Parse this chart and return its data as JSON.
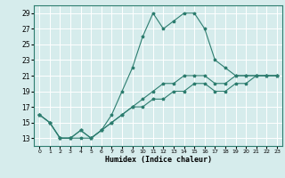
{
  "xlabel": "Humidex (Indice chaleur)",
  "ylabel": "",
  "bg_color": "#d6ecec",
  "grid_color": "#ffffff",
  "line_color": "#2d7d6f",
  "xlim": [
    -0.5,
    23.5
  ],
  "ylim": [
    12,
    30
  ],
  "yticks": [
    13,
    15,
    17,
    19,
    21,
    23,
    25,
    27,
    29
  ],
  "xticks": [
    0,
    1,
    2,
    3,
    4,
    5,
    6,
    7,
    8,
    9,
    10,
    11,
    12,
    13,
    14,
    15,
    16,
    17,
    18,
    19,
    20,
    21,
    22,
    23
  ],
  "series": [
    {
      "x": [
        0,
        1,
        2,
        3,
        4,
        5,
        6,
        7,
        8,
        9,
        10,
        11,
        12,
        13,
        14,
        15,
        16,
        17,
        18,
        19,
        20,
        21,
        22,
        23
      ],
      "y": [
        16,
        15,
        13,
        13,
        13,
        13,
        14,
        16,
        19,
        22,
        26,
        29,
        27,
        28,
        29,
        29,
        27,
        23,
        22,
        21,
        21,
        21,
        21,
        21
      ]
    },
    {
      "x": [
        0,
        1,
        2,
        3,
        4,
        5,
        6,
        7,
        8,
        9,
        10,
        11,
        12,
        13,
        14,
        15,
        16,
        17,
        18,
        19,
        20,
        21,
        22,
        23
      ],
      "y": [
        16,
        15,
        13,
        13,
        14,
        13,
        14,
        15,
        16,
        17,
        18,
        19,
        20,
        20,
        21,
        21,
        21,
        20,
        20,
        21,
        21,
        21,
        21,
        21
      ]
    },
    {
      "x": [
        0,
        1,
        2,
        3,
        4,
        5,
        6,
        7,
        8,
        9,
        10,
        11,
        12,
        13,
        14,
        15,
        16,
        17,
        18,
        19,
        20,
        21,
        22,
        23
      ],
      "y": [
        16,
        15,
        13,
        13,
        14,
        13,
        14,
        15,
        16,
        17,
        17,
        18,
        18,
        19,
        19,
        20,
        20,
        19,
        19,
        20,
        20,
        21,
        21,
        21
      ]
    }
  ]
}
